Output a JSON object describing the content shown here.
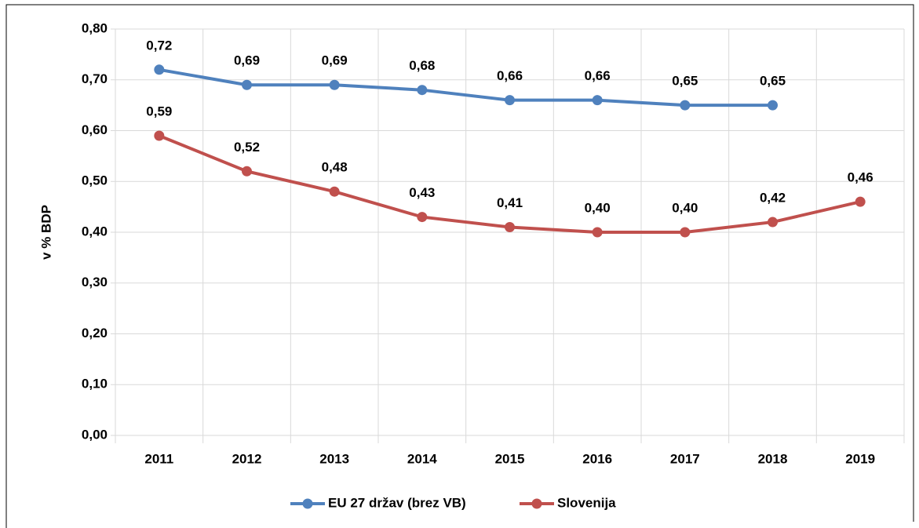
{
  "chart_data": {
    "type": "line",
    "ylabel": "v % BDP",
    "categories": [
      "2011",
      "2012",
      "2013",
      "2014",
      "2015",
      "2016",
      "2017",
      "2018",
      "2019"
    ],
    "series": [
      {
        "name": "EU 27 držav (brez VB)",
        "color": "#4f81bd",
        "values": [
          0.72,
          0.69,
          0.69,
          0.68,
          0.66,
          0.66,
          0.65,
          0.65,
          null
        ],
        "value_labels": [
          "0,72",
          "0,69",
          "0,69",
          "0,68",
          "0,66",
          "0,66",
          "0,65",
          "0,65",
          null
        ]
      },
      {
        "name": "Slovenija",
        "color": "#c0504d",
        "values": [
          0.59,
          0.52,
          0.48,
          0.43,
          0.41,
          0.4,
          0.4,
          0.42,
          0.46
        ],
        "value_labels": [
          "0,59",
          "0,52",
          "0,48",
          "0,43",
          "0,41",
          "0,40",
          "0,40",
          "0,42",
          "0,46"
        ]
      }
    ],
    "ylim": [
      0,
      0.8
    ],
    "yticks": [
      {
        "value": 0,
        "label": "0,00"
      },
      {
        "value": 0.1,
        "label": "0,10"
      },
      {
        "value": 0.2,
        "label": "0,20"
      },
      {
        "value": 0.3,
        "label": "0,30"
      },
      {
        "value": 0.4,
        "label": "0,40"
      },
      {
        "value": 0.5,
        "label": "0,50"
      },
      {
        "value": 0.6,
        "label": "0,60"
      },
      {
        "value": 0.7,
        "label": "0,70"
      },
      {
        "value": 0.8,
        "label": "0,80"
      }
    ],
    "grid": true,
    "legend": "bottom"
  }
}
